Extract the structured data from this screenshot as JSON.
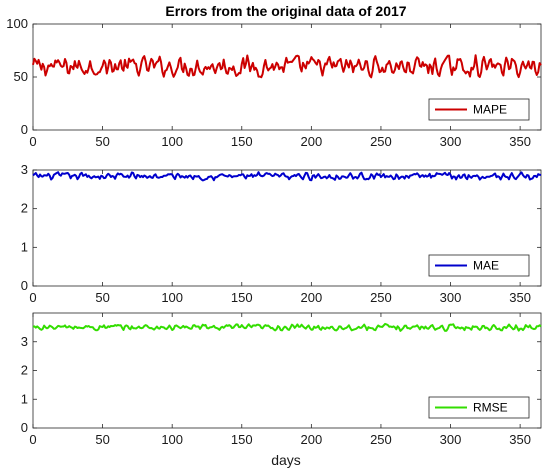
{
  "chart_data": {
    "type": "line",
    "title": "Errors from the original data of 2017",
    "xlabel": "days",
    "x_range": [
      0,
      365
    ],
    "x_ticks": [
      0,
      50,
      100,
      150,
      200,
      250,
      300,
      350
    ],
    "grid": false,
    "legend_placement": "lower-right",
    "panels": [
      {
        "name": "mape-panel",
        "ylim": [
          0,
          100
        ],
        "y_ticks": [
          0,
          50,
          100
        ],
        "series": [
          {
            "name": "MAPE",
            "color": "#cc0000",
            "mean": 60,
            "amplitude": 7,
            "min": 45,
            "max": 76
          }
        ]
      },
      {
        "name": "mae-panel",
        "ylim": [
          0,
          3
        ],
        "y_ticks": [
          0,
          1,
          2,
          3
        ],
        "series": [
          {
            "name": "MAE",
            "color": "#0000cc",
            "mean": 2.84,
            "amplitude": 0.07,
            "min": 2.65,
            "max": 3.0
          }
        ]
      },
      {
        "name": "rmse-panel",
        "ylim": [
          0,
          4
        ],
        "y_ticks": [
          0,
          1,
          2,
          3
        ],
        "series": [
          {
            "name": "RMSE",
            "color": "#33dd00",
            "mean": 3.5,
            "amplitude": 0.08,
            "min": 3.25,
            "max": 3.75
          }
        ]
      }
    ]
  }
}
